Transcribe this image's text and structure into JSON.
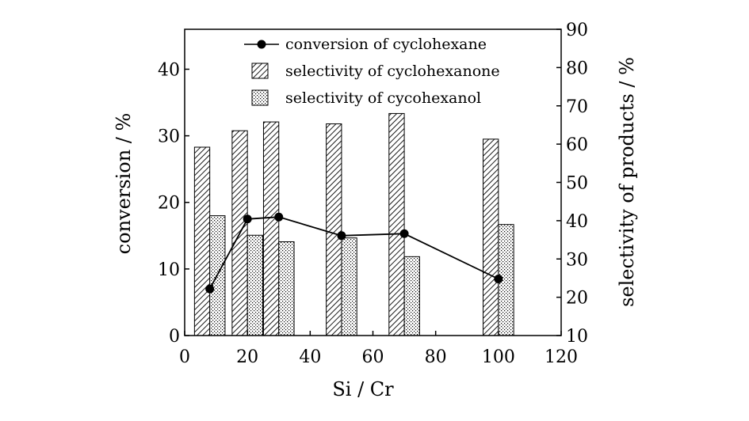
{
  "chart_data": {
    "type": "bar",
    "xlabel": "Si / Cr",
    "ylabel": "conversion / %",
    "y2label": "selectivity of products / %",
    "xlim": [
      0,
      120
    ],
    "ylim": [
      0,
      46
    ],
    "y2lim": [
      10,
      90
    ],
    "xticks": [
      0,
      20,
      40,
      60,
      80,
      100,
      120
    ],
    "yticks": [
      0,
      10,
      20,
      30,
      40
    ],
    "y2ticks": [
      10,
      20,
      30,
      40,
      50,
      60,
      70,
      80,
      90
    ],
    "x": [
      8,
      20,
      30,
      50,
      70,
      100
    ],
    "series": [
      {
        "name": "conversion of cyclohexane",
        "type": "line",
        "axis": "left",
        "marker": "circle",
        "values": [
          7.0,
          17.5,
          17.8,
          15.0,
          15.3,
          8.5
        ]
      },
      {
        "name": "selectivity of cyclohexanone",
        "type": "bar",
        "axis": "right",
        "pattern": "diagonal-hatch",
        "values": [
          59.2,
          63.5,
          65.8,
          65.3,
          68.0,
          61.3
        ]
      },
      {
        "name": "selectivity of cycohexanol",
        "type": "bar",
        "axis": "right",
        "pattern": "dots",
        "values": [
          41.3,
          36.2,
          34.5,
          35.5,
          30.6,
          39.0
        ]
      }
    ],
    "legend_position": "top-center",
    "grid": false
  }
}
